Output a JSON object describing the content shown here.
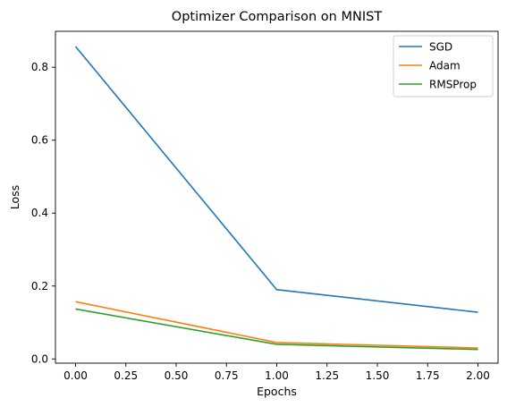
{
  "chart_data": {
    "type": "line",
    "title": "Optimizer Comparison on MNIST",
    "xlabel": "Epochs",
    "ylabel": "Loss",
    "x": [
      0,
      1,
      2
    ],
    "xlim": [
      -0.1,
      2.1
    ],
    "ylim": [
      -0.0116,
      0.8986
    ],
    "xticks": [
      "0.00",
      "0.25",
      "0.50",
      "0.75",
      "1.00",
      "1.25",
      "1.50",
      "1.75",
      "2.00"
    ],
    "yticks": [
      "0.0",
      "0.2",
      "0.4",
      "0.6",
      "0.8"
    ],
    "grid": false,
    "legend_position": "top-right",
    "series": [
      {
        "name": "SGD",
        "color": "#1f77b4",
        "values": [
          0.857,
          0.19,
          0.128
        ]
      },
      {
        "name": "Adam",
        "color": "#ff7f0e",
        "values": [
          0.157,
          0.045,
          0.03
        ]
      },
      {
        "name": "RMSProp",
        "color": "#2ca02c",
        "values": [
          0.137,
          0.04,
          0.026
        ]
      }
    ]
  }
}
